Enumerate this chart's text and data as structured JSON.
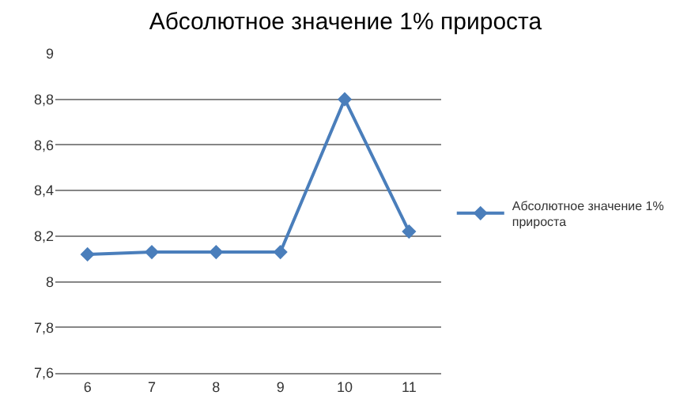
{
  "chart_data": {
    "type": "line",
    "title": "Абсолютное значение 1% прироста",
    "categories": [
      "6",
      "7",
      "8",
      "9",
      "10",
      "11"
    ],
    "series": [
      {
        "name": "Абсолютное значение 1% прироста",
        "color": "#4a7ebb",
        "values": [
          8.12,
          8.13,
          8.13,
          8.13,
          8.8,
          8.22
        ]
      }
    ],
    "ylim": [
      7.6,
      9
    ],
    "yticks": [
      {
        "value": 7.6,
        "label": "7,6"
      },
      {
        "value": 7.8,
        "label": "7,8"
      },
      8,
      {
        "value": 8.2,
        "label": "8,2"
      },
      {
        "value": 8.4,
        "label": "8,4"
      },
      {
        "value": 8.6,
        "label": "8,6"
      },
      {
        "value": 8.8,
        "label": "8,8"
      },
      9
    ],
    "grid": "y",
    "legend": "right",
    "marker": "diamond",
    "line_style": "solid"
  }
}
